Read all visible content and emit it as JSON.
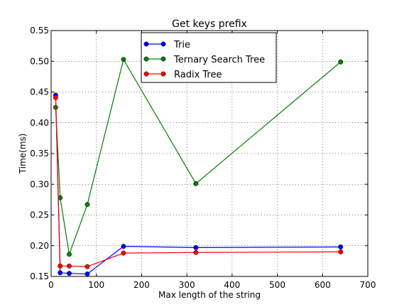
{
  "chart_data": {
    "type": "line",
    "title": "Get keys prefix",
    "xlabel": "Max length of the string",
    "ylabel": "Time(ms)",
    "xlim": [
      0,
      700
    ],
    "ylim": [
      0.15,
      0.55
    ],
    "xticks": [
      0,
      100,
      200,
      300,
      400,
      500,
      600,
      700
    ],
    "yticks": [
      0.15,
      0.2,
      0.25,
      0.3,
      0.35,
      0.4,
      0.45,
      0.5,
      0.55
    ],
    "grid": true,
    "legend_position": "top-center",
    "series": [
      {
        "name": "Trie",
        "color": "#0000ff",
        "x": [
          10,
          20,
          40,
          80,
          160,
          320,
          640
        ],
        "y": [
          0.445,
          0.156,
          0.155,
          0.154,
          0.199,
          0.197,
          0.198
        ]
      },
      {
        "name": "Ternary Search Tree",
        "color": "#008000",
        "x": [
          10,
          20,
          40,
          80,
          160,
          320,
          640
        ],
        "y": [
          0.425,
          0.278,
          0.186,
          0.267,
          0.503,
          0.301,
          0.499
        ]
      },
      {
        "name": "Radix Tree",
        "color": "#ff0000",
        "x": [
          10,
          20,
          40,
          80,
          160,
          320,
          640
        ],
        "y": [
          0.441,
          0.167,
          0.167,
          0.166,
          0.188,
          0.189,
          0.19
        ]
      }
    ]
  }
}
